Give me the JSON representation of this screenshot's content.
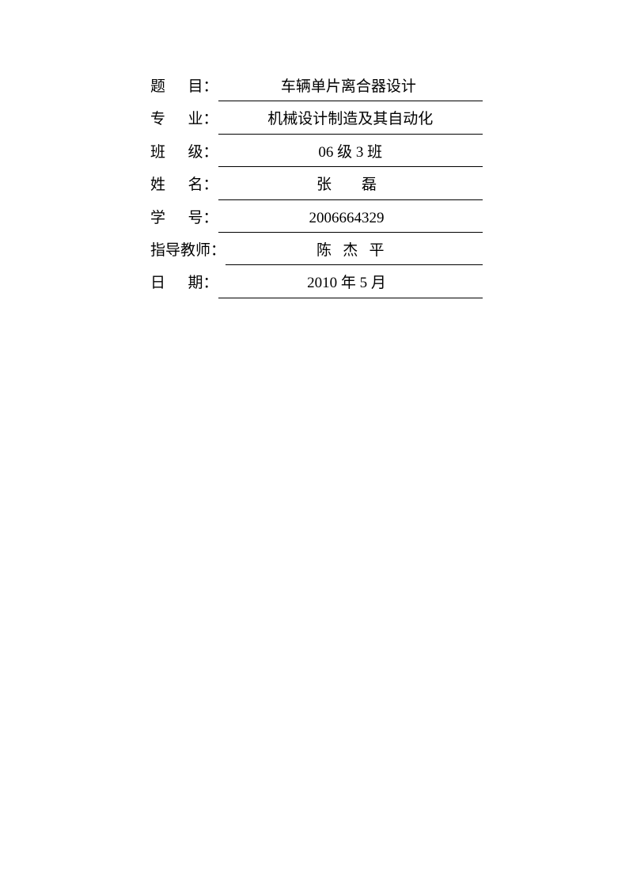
{
  "form": {
    "rows": [
      {
        "label": "题      目：",
        "value": "   车辆单片离合器设计    "
      },
      {
        "label": "专      业：",
        "value": " 机械设计制造及其自动化 "
      },
      {
        "label": "班      级：",
        "value": "       06 级 3 班       "
      },
      {
        "label": "姓      名：",
        "value": "     张        磊       "
      },
      {
        "label": "学      号：",
        "value": "      2006664329        "
      },
      {
        "label": "指导教师：",
        "value": "     陈   杰   平       "
      },
      {
        "label": "日      期：",
        "value": "     2010 年 5 月       "
      }
    ]
  },
  "style": {
    "background_color": "#ffffff",
    "text_color": "#000000",
    "font_size_pt": 14,
    "underline_color": "#000000"
  }
}
